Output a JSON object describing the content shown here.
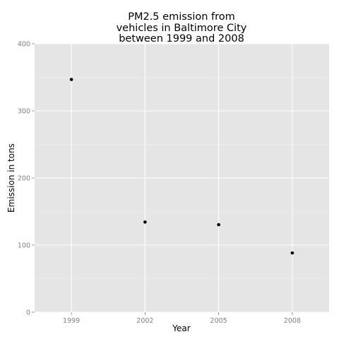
{
  "chart_data": {
    "type": "scatter",
    "title_lines": [
      "PM2.5 emission from",
      "vehicles in Baltimore City",
      "between 1999 and 2008"
    ],
    "xlabel": "Year",
    "ylabel": "Emission in tons",
    "x": [
      "1999",
      "2002",
      "2005",
      "2008"
    ],
    "y": [
      346.8,
      134.3,
      130.4,
      88.3
    ],
    "ylim": [
      0,
      400
    ],
    "yticks": [
      "0",
      "100",
      "200",
      "300",
      "400"
    ],
    "xticks": [
      "1999",
      "2002",
      "2005",
      "2008"
    ],
    "grid": true,
    "legend": "none",
    "colors": {
      "panel": "#e5e5e5",
      "grid_major": "#ffffff",
      "grid_minor": "#f2f2f2",
      "point": "#000000",
      "tick_text": "#7f7f7f"
    }
  }
}
